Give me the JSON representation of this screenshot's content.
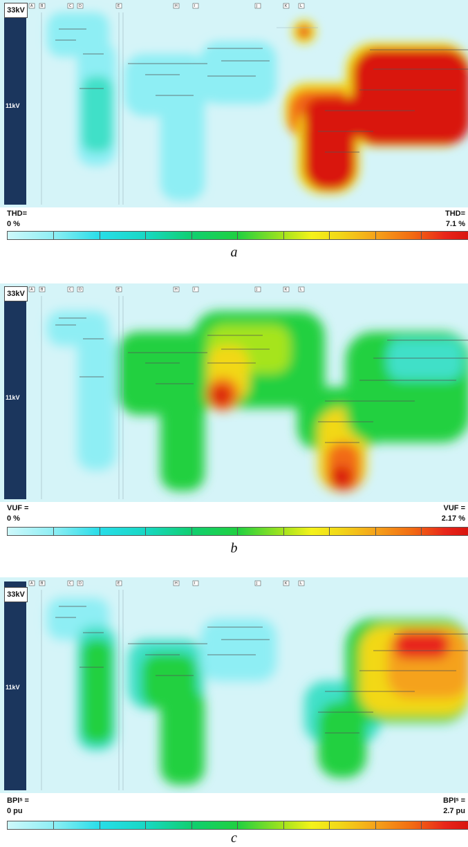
{
  "panels": [
    {
      "id": "a",
      "voltage_33": "33kV",
      "voltage_11": "11kV",
      "metric_label": "THD=",
      "min_value": "0 %",
      "max_label": "THD=",
      "max_value": "7.1 %",
      "caption": "a",
      "feeder_labels": [
        "A",
        "B",
        "C",
        "D",
        "E",
        "H",
        "I",
        "J",
        "K",
        "L"
      ]
    },
    {
      "id": "b",
      "voltage_33": "33kV",
      "voltage_11": "11kV",
      "metric_label": "VUF =",
      "min_value": "0 %",
      "max_label": "VUF =",
      "max_value": "2.17 %",
      "caption": "b",
      "feeder_labels": [
        "A",
        "B",
        "C",
        "D",
        "E",
        "H",
        "I",
        "J",
        "K",
        "L"
      ]
    },
    {
      "id": "c",
      "voltage_33": "33kV",
      "voltage_11": "11kV",
      "metric_label": "BPIˢ =",
      "min_value": "0 pu",
      "max_label": "BPIˢ =",
      "max_value": "2.7 pu",
      "caption": "c",
      "feeder_labels": [
        "A",
        "B",
        "C",
        "D",
        "E",
        "H",
        "I",
        "J",
        "K",
        "L"
      ]
    }
  ],
  "colors": {
    "voltage_bar": "#1b365d",
    "background_min": "#d5f4f8",
    "max_red": "#d9150f"
  }
}
